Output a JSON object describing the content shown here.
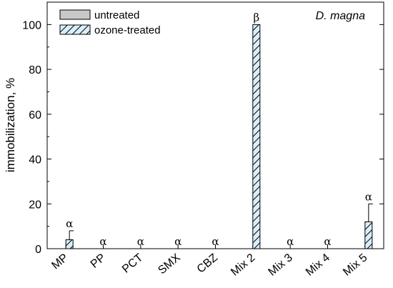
{
  "chart_data": {
    "type": "bar",
    "ylabel": "immobilization, %",
    "ylim": [
      0,
      110
    ],
    "yticks": [
      0,
      20,
      40,
      60,
      80,
      100
    ],
    "species_label": "D. magna",
    "categories": [
      "MP",
      "PP",
      "PCT",
      "SMX",
      "CBZ",
      "Mix 2",
      "Mix 3",
      "Mix 4",
      "Mix 5"
    ],
    "series": [
      {
        "name": "untreated",
        "pattern": "solid",
        "color": "#c8c8c8",
        "values": [
          0,
          0,
          0,
          0,
          0,
          0,
          0,
          0,
          0
        ]
      },
      {
        "name": "ozone-treated",
        "pattern": "hatched",
        "color": "#d9eef9",
        "values": [
          4,
          0,
          0,
          0,
          0,
          100,
          0,
          0,
          12
        ],
        "errors": [
          4,
          0,
          0,
          0,
          0,
          0,
          0,
          0,
          8
        ]
      }
    ],
    "significance_labels": [
      "α",
      "α",
      "α",
      "α",
      "α",
      "β",
      "α",
      "α",
      "α"
    ],
    "legend_position": "top-left"
  }
}
